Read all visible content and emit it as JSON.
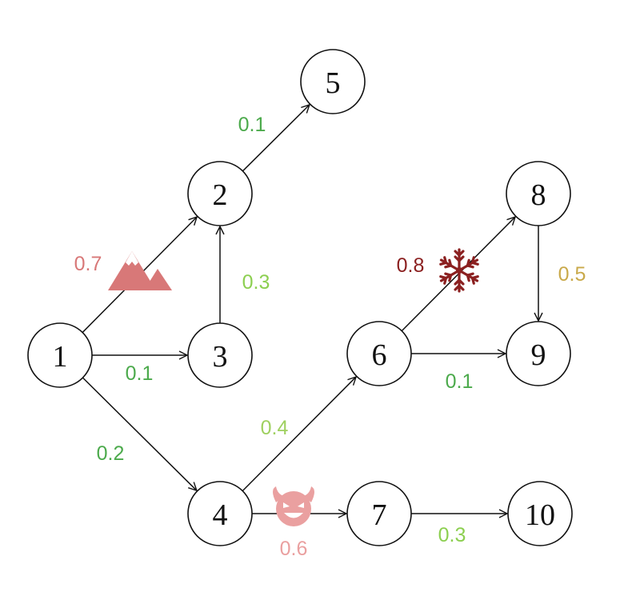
{
  "nodes": [
    {
      "id": "1",
      "label": "1"
    },
    {
      "id": "2",
      "label": "2"
    },
    {
      "id": "3",
      "label": "3"
    },
    {
      "id": "4",
      "label": "4"
    },
    {
      "id": "5",
      "label": "5"
    },
    {
      "id": "6",
      "label": "6"
    },
    {
      "id": "7",
      "label": "7"
    },
    {
      "id": "8",
      "label": "8"
    },
    {
      "id": "9",
      "label": "9"
    },
    {
      "id": "10",
      "label": "10"
    }
  ],
  "edges": [
    {
      "from": "1",
      "to": "2",
      "weight": "0.7",
      "color": "#d87878",
      "icon": "mountain-icon"
    },
    {
      "from": "1",
      "to": "3",
      "weight": "0.1",
      "color": "#4caa4c"
    },
    {
      "from": "1",
      "to": "4",
      "weight": "0.2",
      "color": "#4caa4c"
    },
    {
      "from": "3",
      "to": "2",
      "weight": "0.3",
      "color": "#8ccf50"
    },
    {
      "from": "2",
      "to": "5",
      "weight": "0.1",
      "color": "#4caa4c"
    },
    {
      "from": "4",
      "to": "6",
      "weight": "0.4",
      "color": "#9fd060"
    },
    {
      "from": "4",
      "to": "7",
      "weight": "0.6",
      "color": "#eaa0a0",
      "icon": "devil-face-icon"
    },
    {
      "from": "7",
      "to": "10",
      "weight": "0.3",
      "color": "#8ccf50"
    },
    {
      "from": "6",
      "to": "8",
      "weight": "0.8",
      "color": "#8b2020",
      "icon": "snowflake-icon"
    },
    {
      "from": "6",
      "to": "9",
      "weight": "0.1",
      "color": "#4caa4c"
    },
    {
      "from": "8",
      "to": "9",
      "weight": "0.5",
      "color": "#c9a94a"
    }
  ],
  "icon_colors": {
    "mountain-icon": "#d87878",
    "devil-face-icon": "#eaa0a0",
    "snowflake-icon": "#8b2020"
  }
}
